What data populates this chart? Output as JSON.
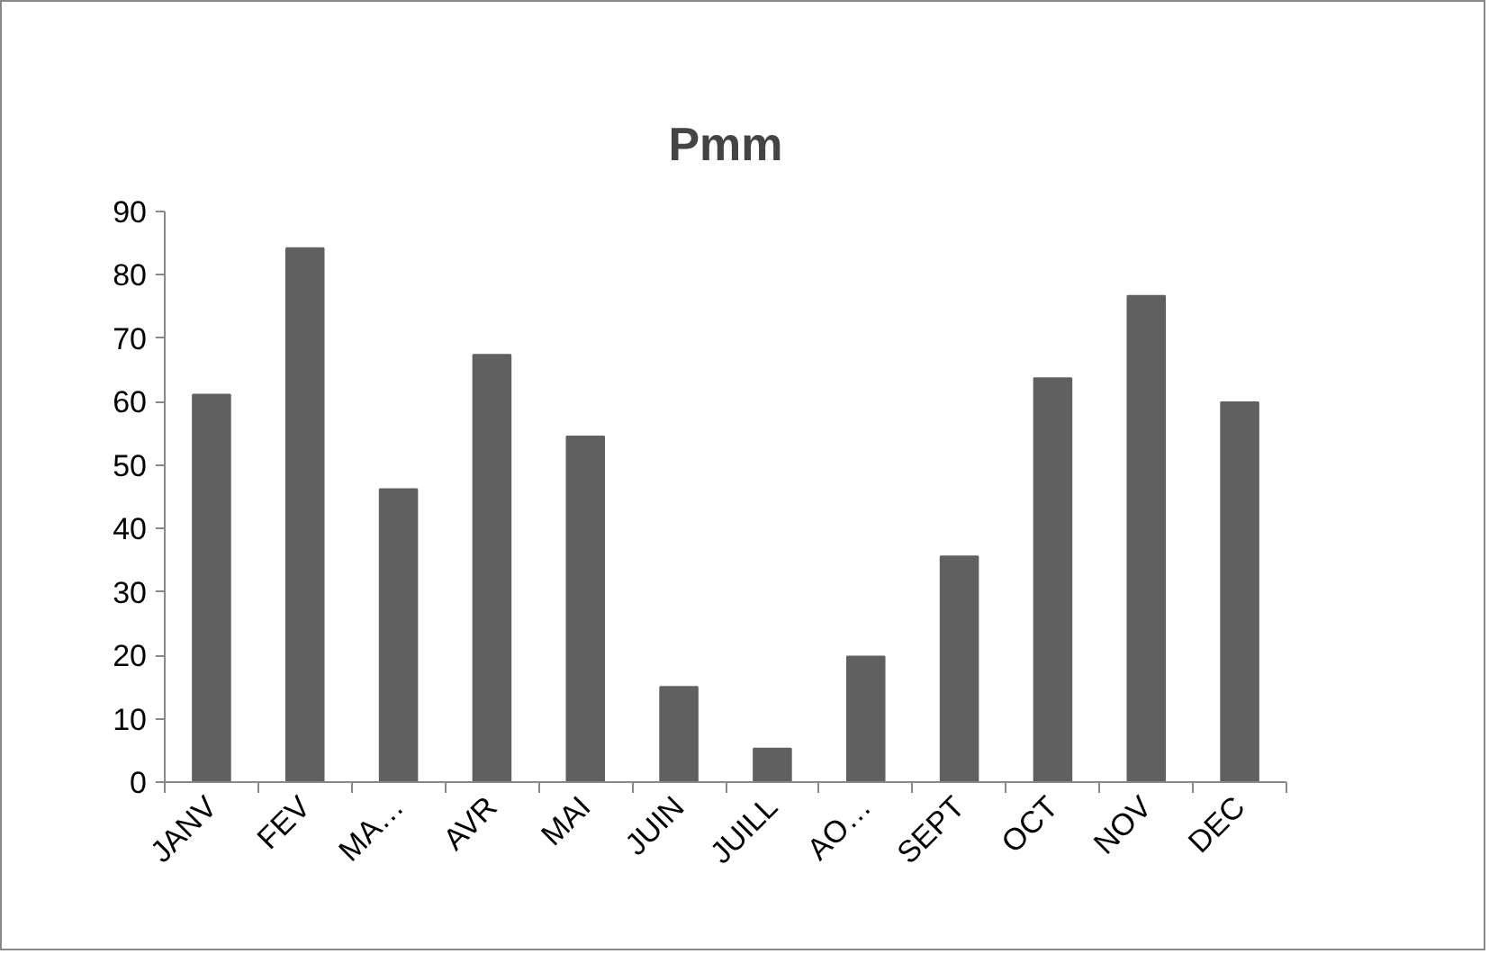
{
  "chart_data": {
    "type": "bar",
    "title": "Pmm",
    "categories": [
      "JANV",
      "FEV",
      "MA…",
      "AVR",
      "MAI",
      "JUIN",
      "JUILL",
      "AO…",
      "SEPT",
      "OCT",
      "NOV",
      "DEC"
    ],
    "values": [
      61.1,
      84.2,
      46.2,
      67.4,
      54.5,
      15.0,
      5.3,
      19.8,
      35.6,
      63.7,
      76.7,
      59.9
    ],
    "color": "#606060",
    "ylim": [
      0,
      90
    ],
    "yticks": [
      0,
      10,
      20,
      30,
      40,
      50,
      60,
      70,
      80,
      90
    ],
    "grid": false
  }
}
